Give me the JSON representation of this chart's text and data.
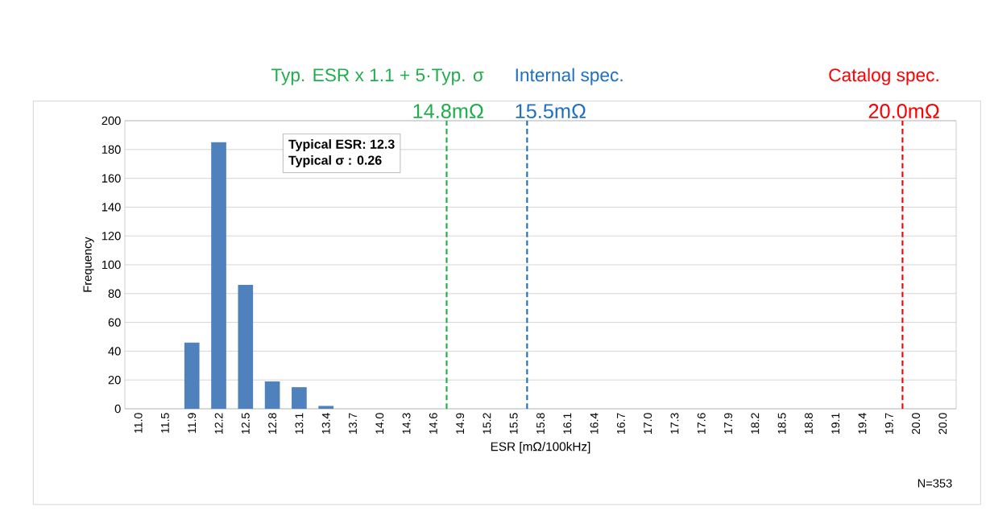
{
  "chart_data": {
    "type": "bar",
    "categories": [
      "11.0",
      "11.5",
      "11.9",
      "12.2",
      "12.5",
      "12.8",
      "13.1",
      "13.4",
      "13.7",
      "14.0",
      "14.3",
      "14.6",
      "14.9",
      "15.2",
      "15.5",
      "15.8",
      "16.1",
      "16.4",
      "16.7",
      "17.0",
      "17.3",
      "17.6",
      "17.9",
      "18.2",
      "18.5",
      "18.8",
      "19.1",
      "19.4",
      "19.7",
      "20.0",
      "20.0"
    ],
    "values": [
      0,
      0,
      46,
      185,
      86,
      19,
      15,
      2,
      0,
      0,
      0,
      0,
      0,
      0,
      0,
      0,
      0,
      0,
      0,
      0,
      0,
      0,
      0,
      0,
      0,
      0,
      0,
      0,
      0,
      0,
      0
    ],
    "color": "#4f81bd",
    "xlabel": "ESR [mΩ/100kHz]",
    "ylabel": "Frequency",
    "ylim": [
      0,
      200
    ],
    "yticks": [
      0,
      20,
      40,
      60,
      80,
      100,
      120,
      140,
      160,
      180,
      200
    ],
    "grid": "y",
    "ref_lines": [
      {
        "axis": "x",
        "value": "14.6",
        "label": "Typ. ESR x 1.1 + 5·Typ. σ",
        "color": "#1fae4b",
        "line_style": "dashed"
      },
      {
        "axis": "x",
        "value": "15.5",
        "label": "Internal spec.",
        "color": "#1f6fc5",
        "line_style": "dashed"
      },
      {
        "axis": "x",
        "value": "19.7",
        "label": "Catalog spec.",
        "color": "#ff0000",
        "line_style": "dashed"
      }
    ],
    "annotations": [
      "14.8mΩ",
      "15.5mΩ",
      "20.0mΩ",
      "Typical ESR: 12.3",
      "Typical σ : 0.26",
      "N=353"
    ]
  }
}
